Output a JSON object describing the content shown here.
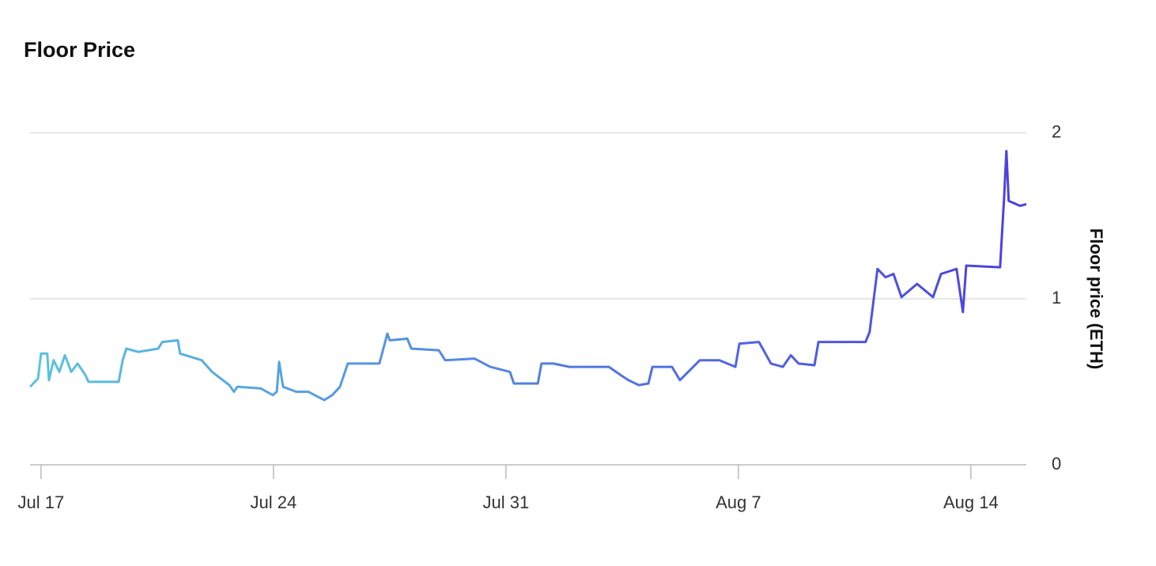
{
  "chart_data": {
    "type": "line",
    "title": "Floor Price",
    "y_label": "Floor price (ETH)",
    "x": [
      197.67,
      197.91,
      198.0,
      198.19,
      198.24,
      198.38,
      198.55,
      198.72,
      198.91,
      199.1,
      199.34,
      199.43,
      200.34,
      200.46,
      200.57,
      200.93,
      201.53,
      201.65,
      202.12,
      202.19,
      202.84,
      203.15,
      203.67,
      203.81,
      203.91,
      204.62,
      204.98,
      205.1,
      205.17,
      205.29,
      205.69,
      206.05,
      206.24,
      206.53,
      206.77,
      207.0,
      207.24,
      208.19,
      208.43,
      208.5,
      209.03,
      209.15,
      209.98,
      210.17,
      211.05,
      211.53,
      212.12,
      212.24,
      212.96,
      213.07,
      213.43,
      213.91,
      215.1,
      215.46,
      215.69,
      216.0,
      216.29,
      216.41,
      217.0,
      217.24,
      217.84,
      218.43,
      218.91,
      219.03,
      219.62,
      219.98,
      220.34,
      220.58,
      220.81,
      221.29,
      221.41,
      222.83,
      222.95,
      223.07,
      223.19,
      223.43,
      223.67,
      223.91,
      224.38,
      224.86,
      225.1,
      225.57,
      225.76,
      225.86,
      226.88,
      227.0,
      227.07,
      227.14,
      227.48,
      227.67
    ],
    "series": [
      {
        "name": "Floor price",
        "gradient": [
          "#5bc3e0",
          "#4b3fe0"
        ],
        "values": [
          0.47,
          0.52,
          0.67,
          0.67,
          0.51,
          0.63,
          0.56,
          0.66,
          0.56,
          0.61,
          0.54,
          0.5,
          0.5,
          0.63,
          0.7,
          0.68,
          0.7,
          0.74,
          0.75,
          0.67,
          0.63,
          0.56,
          0.48,
          0.44,
          0.47,
          0.46,
          0.42,
          0.44,
          0.62,
          0.47,
          0.44,
          0.44,
          0.42,
          0.39,
          0.42,
          0.47,
          0.61,
          0.61,
          0.79,
          0.75,
          0.76,
          0.7,
          0.69,
          0.63,
          0.64,
          0.59,
          0.56,
          0.49,
          0.49,
          0.61,
          0.61,
          0.59,
          0.59,
          0.54,
          0.51,
          0.48,
          0.49,
          0.59,
          0.59,
          0.51,
          0.63,
          0.63,
          0.59,
          0.73,
          0.74,
          0.61,
          0.59,
          0.66,
          0.61,
          0.6,
          0.74,
          0.74,
          0.8,
          0.99,
          1.18,
          1.13,
          1.15,
          1.01,
          1.09,
          1.01,
          1.15,
          1.18,
          0.92,
          1.2,
          1.19,
          1.61,
          1.89,
          1.59,
          1.56,
          1.57
        ]
      }
    ],
    "xlim": [
      197.67,
      227.67
    ],
    "xticks": [
      {
        "value": 198,
        "label": "Jul 17"
      },
      {
        "value": 205,
        "label": "Jul 24"
      },
      {
        "value": 212,
        "label": "Jul 31"
      },
      {
        "value": 219,
        "label": "Aug 7"
      },
      {
        "value": 226,
        "label": "Aug 14"
      }
    ],
    "ylim": [
      0,
      2
    ],
    "yticks": [
      0,
      1,
      2
    ],
    "grid": true
  }
}
